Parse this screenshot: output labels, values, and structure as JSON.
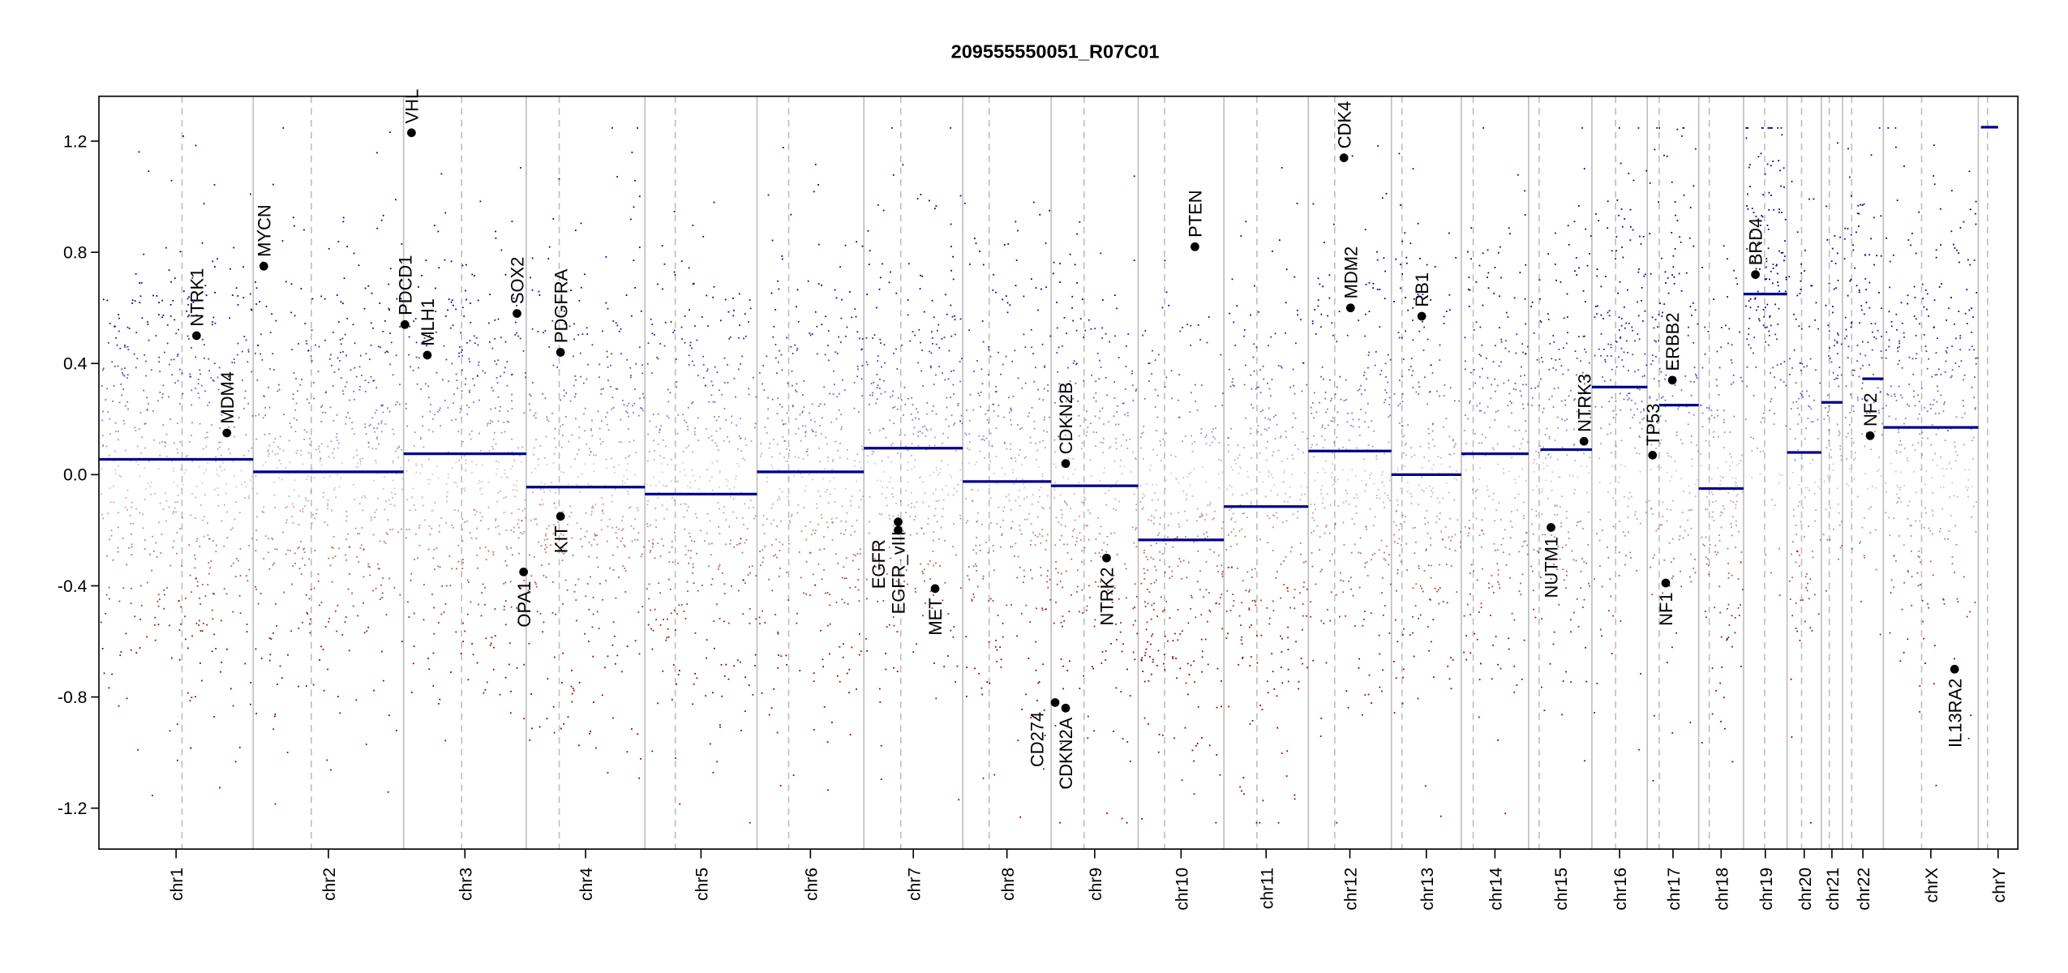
{
  "chart_data": {
    "type": "scatter",
    "title": "209555550051_R07C01",
    "xlabel": "",
    "ylabel": "",
    "ylim": [
      -1.35,
      1.36
    ],
    "yticks": [
      "-1.2",
      "-0.8",
      "-0.4",
      "0.0",
      "0.4",
      "0.8",
      "1.2"
    ],
    "ytick_values": [
      -1.2,
      -0.8,
      -0.4,
      0.0,
      0.4,
      0.8,
      1.2
    ],
    "point_colors": {
      "gain": "#00008B",
      "loss": "#8B0000",
      "neutral": "#BEBEBE",
      "segment": "#00008B"
    },
    "chromosomes": [
      "chr1",
      "chr2",
      "chr3",
      "chr4",
      "chr5",
      "chr6",
      "chr7",
      "chr8",
      "chr9",
      "chr10",
      "chr11",
      "chr12",
      "chr13",
      "chr14",
      "chr15",
      "chr16",
      "chr17",
      "chr18",
      "chr19",
      "chr20",
      "chr21",
      "chr22",
      "chrX",
      "chrY"
    ],
    "segments": [
      {
        "chr": "chr1",
        "value": 0.055
      },
      {
        "chr": "chr2",
        "value": 0.01
      },
      {
        "chr": "chr3",
        "value": 0.075
      },
      {
        "chr": "chr4",
        "value": -0.045
      },
      {
        "chr": "chr5",
        "value": -0.07
      },
      {
        "chr": "chr6",
        "value": 0.01
      },
      {
        "chr": "chr7",
        "value": 0.095
      },
      {
        "chr": "chr8",
        "value": -0.025
      },
      {
        "chr": "chr9",
        "value": -0.04
      },
      {
        "chr": "chr10",
        "value": -0.235
      },
      {
        "chr": "chr11",
        "value": -0.115
      },
      {
        "chr": "chr12",
        "value": 0.085
      },
      {
        "chr": "chr13",
        "value": 0.0
      },
      {
        "chr": "chr14",
        "value": 0.075
      },
      {
        "chr": "chr15",
        "value": 0.09
      },
      {
        "chr": "chr16",
        "value": 0.315
      },
      {
        "chr": "chr17",
        "value": 0.25
      },
      {
        "chr": "chr18",
        "value": -0.05
      },
      {
        "chr": "chr19",
        "value": 0.65
      },
      {
        "chr": "chr20",
        "value": 0.08
      },
      {
        "chr": "chr21",
        "value": 0.26
      },
      {
        "chr": "chr22",
        "value": 0.345
      },
      {
        "chr": "chrX",
        "value": 0.17
      },
      {
        "chr": "chrY",
        "value": 1.25
      }
    ],
    "genes": [
      {
        "name": "NTRK1",
        "chr": "chr1",
        "value": 0.5
      },
      {
        "name": "MDM4",
        "chr": "chr1",
        "value": 0.15
      },
      {
        "name": "MYCN",
        "chr": "chr2",
        "value": 0.75
      },
      {
        "name": "PDCD1",
        "chr": "chr2",
        "value": 0.54
      },
      {
        "name": "VHL",
        "chr": "chr3",
        "value": 1.23
      },
      {
        "name": "MLH1",
        "chr": "chr3",
        "value": 0.43
      },
      {
        "name": "SOX2",
        "chr": "chr3",
        "value": 0.58
      },
      {
        "name": "OPA1",
        "chr": "chr3",
        "value": -0.35
      },
      {
        "name": "PDGFRA",
        "chr": "chr4",
        "value": 0.44
      },
      {
        "name": "KIT",
        "chr": "chr4",
        "value": -0.15
      },
      {
        "name": "EGFR",
        "chr": "chr7",
        "value": -0.2
      },
      {
        "name": "EGFR_vIII",
        "chr": "chr7",
        "value": -0.17
      },
      {
        "name": "MET",
        "chr": "chr7",
        "value": -0.41
      },
      {
        "name": "CDKN2B",
        "chr": "chr9",
        "value": 0.04
      },
      {
        "name": "CD274",
        "chr": "chr9",
        "value": -0.82
      },
      {
        "name": "CDKN2A",
        "chr": "chr9",
        "value": -0.84
      },
      {
        "name": "NTRK2",
        "chr": "chr9",
        "value": -0.3
      },
      {
        "name": "PTEN",
        "chr": "chr10",
        "value": 0.82
      },
      {
        "name": "CDK4",
        "chr": "chr12",
        "value": 1.14
      },
      {
        "name": "MDM2",
        "chr": "chr12",
        "value": 0.6
      },
      {
        "name": "RB1",
        "chr": "chr13",
        "value": 0.57
      },
      {
        "name": "NUTM1",
        "chr": "chr15",
        "value": -0.19
      },
      {
        "name": "NTRK3",
        "chr": "chr15",
        "value": 0.12
      },
      {
        "name": "TP53",
        "chr": "chr17",
        "value": 0.07
      },
      {
        "name": "ERBB2",
        "chr": "chr17",
        "value": 0.34
      },
      {
        "name": "NF1",
        "chr": "chr17",
        "value": -0.39
      },
      {
        "name": "BRD4",
        "chr": "chr19",
        "value": 0.72
      },
      {
        "name": "NF2",
        "chr": "chr22",
        "value": 0.14
      },
      {
        "name": "IL13RA2",
        "chr": "chrX",
        "value": -0.7
      }
    ]
  }
}
